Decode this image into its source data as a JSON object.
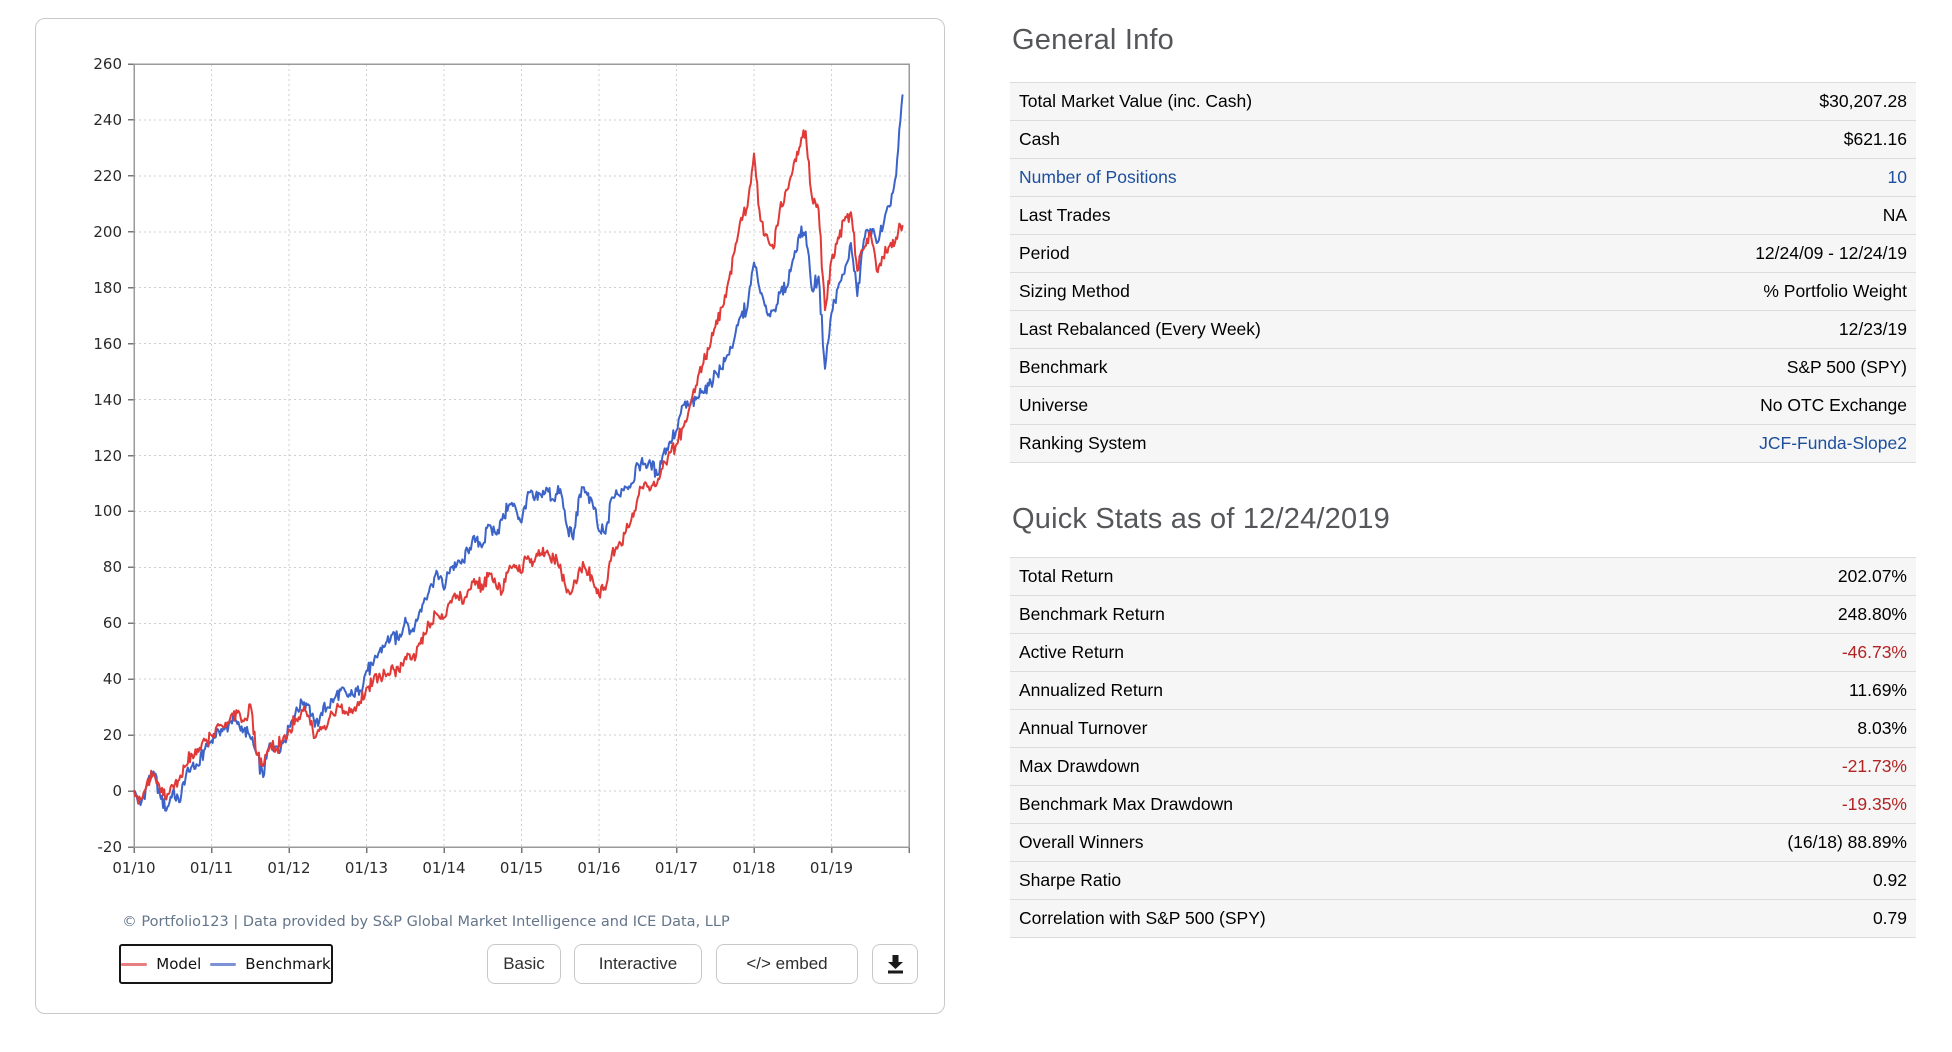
{
  "chart": {
    "footer": "© Portfolio123 | Data provided by S&P Global Market Intelligence and ICE Data, LLP",
    "legend": [
      {
        "label": "Model",
        "swatch_color": "#e87f7f"
      },
      {
        "label": "Benchmark",
        "swatch_color": "#7b92d6"
      }
    ],
    "buttons": [
      "Basic",
      "Interactive",
      "</> embed"
    ],
    "download_icon": "download-icon",
    "download_color": "#1a1a1a"
  },
  "chart_data": {
    "type": "line",
    "title": "",
    "xlabel": "",
    "ylabel": "",
    "ylim": [
      -20,
      260
    ],
    "y_ticks": [
      -20,
      0,
      20,
      40,
      60,
      80,
      100,
      120,
      140,
      160,
      180,
      200,
      220,
      240,
      260
    ],
    "x_tick_labels": [
      "01/10",
      "01/11",
      "01/12",
      "01/13",
      "01/14",
      "01/15",
      "01/16",
      "01/17",
      "01/18",
      "01/19"
    ],
    "x_months": 120,
    "x_end_month": 119.8,
    "x_range": "12/24/09 - 12/24/19",
    "grid": true,
    "legend_position": "bottom-left",
    "series": [
      {
        "name": "Model",
        "color": "#e03a38",
        "final_value": 202.07,
        "values": [
          0,
          -3,
          3,
          6,
          1,
          -3,
          2,
          4,
          9,
          13,
          14,
          18,
          20,
          24,
          23,
          27,
          28,
          25,
          31,
          13,
          9,
          16,
          15,
          18,
          22,
          26,
          29,
          27,
          19,
          22,
          24,
          27,
          30,
          28,
          29,
          32,
          37,
          39,
          42,
          41,
          45,
          43,
          48,
          47,
          52,
          56,
          60,
          63,
          62,
          68,
          70,
          67,
          72,
          75,
          72,
          78,
          74,
          71,
          79,
          80,
          78,
          84,
          82,
          85,
          86,
          83,
          81,
          71,
          73,
          80,
          79,
          76,
          70,
          72,
          85,
          88,
          92,
          97,
          105,
          110,
          108,
          110,
          118,
          121,
          124,
          130,
          137,
          145,
          152,
          158,
          166,
          173,
          182,
          193,
          205,
          209,
          228,
          204,
          199,
          194,
          208,
          215,
          222,
          230,
          236,
          212,
          208,
          172,
          190,
          198,
          204,
          207,
          186,
          194,
          200,
          186,
          191,
          195,
          198,
          202.07
        ]
      },
      {
        "name": "Benchmark",
        "color": "#3c63c8",
        "final_value": 248.8,
        "values": [
          0,
          -5,
          2,
          7,
          -1,
          -7,
          0,
          -4,
          5,
          9,
          9,
          15,
          18,
          22,
          22,
          25,
          24,
          22,
          19,
          13,
          5,
          17,
          16,
          17,
          23,
          28,
          32,
          31,
          23,
          28,
          30,
          33,
          36,
          34,
          34,
          36,
          43,
          45,
          50,
          53,
          56,
          54,
          62,
          57,
          62,
          69,
          74,
          78,
          72,
          80,
          81,
          82,
          87,
          90,
          88,
          95,
          92,
          97,
          102,
          102,
          96,
          107,
          104,
          106,
          108,
          104,
          108,
          95,
          90,
          106,
          107,
          103,
          93,
          92,
          105,
          106,
          109,
          110,
          117,
          117,
          117,
          113,
          121,
          125,
          129,
          138,
          138,
          140,
          143,
          145,
          150,
          151,
          156,
          162,
          170,
          173,
          189,
          178,
          171,
          172,
          178,
          180,
          190,
          199,
          200,
          179,
          184,
          151,
          171,
          180,
          185,
          196,
          177,
          197,
          201,
          196,
          202,
          209,
          220,
          248.8
        ]
      }
    ]
  },
  "general_info": {
    "title": "General Info",
    "rows": [
      {
        "label": "Total Market Value (inc. Cash)",
        "value": "$30,207.28"
      },
      {
        "label": "Cash",
        "value": "$621.16"
      },
      {
        "label": "Number of Positions",
        "value": "10",
        "label_style": "link",
        "value_style": "link"
      },
      {
        "label": "Last Trades",
        "value": "NA"
      },
      {
        "label": "Period",
        "value": "12/24/09 - 12/24/19"
      },
      {
        "label": "Sizing Method",
        "value": "% Portfolio Weight"
      },
      {
        "label": "Last Rebalanced (Every Week)",
        "value": "12/23/19"
      },
      {
        "label": "Benchmark",
        "value": "S&P 500 (SPY)"
      },
      {
        "label": "Universe",
        "value": "No OTC Exchange"
      },
      {
        "label": "Ranking System",
        "value": "JCF-Funda-Slope2",
        "value_style": "link"
      }
    ]
  },
  "quick_stats": {
    "title": "Quick Stats as of 12/24/2019",
    "rows": [
      {
        "label": "Total Return",
        "value": "202.07%"
      },
      {
        "label": "Benchmark Return",
        "value": "248.80%"
      },
      {
        "label": "Active Return",
        "value": "-46.73%",
        "value_style": "negative"
      },
      {
        "label": "Annualized Return",
        "value": "11.69%"
      },
      {
        "label": "Annual Turnover",
        "value": "8.03%"
      },
      {
        "label": "Max Drawdown",
        "value": "-21.73%",
        "value_style": "negative"
      },
      {
        "label": "Benchmark Max Drawdown",
        "value": "-19.35%",
        "value_style": "negative"
      },
      {
        "label": "Overall Winners",
        "value": "(16/18) 88.89%"
      },
      {
        "label": "Sharpe Ratio",
        "value": "0.92"
      },
      {
        "label": "Correlation with S&P 500 (SPY)",
        "value": "0.79"
      }
    ]
  }
}
